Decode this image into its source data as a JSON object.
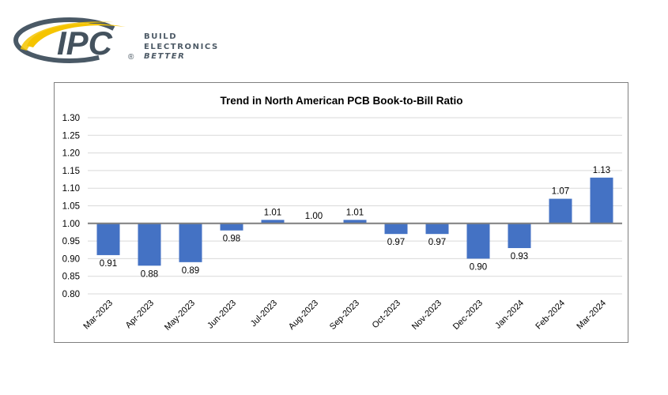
{
  "logo": {
    "brand": "IPC",
    "registered": "®",
    "tagline": [
      "BUILD",
      "ELECTRONICS",
      "BETTER"
    ],
    "colors": {
      "swoosh": "#f5c400",
      "ring": "#4a5966",
      "text": "#44525e"
    }
  },
  "chart_data": {
    "type": "bar",
    "title": "Trend in North American PCB Book-to-Bill Ratio",
    "categories": [
      "Mar-2023",
      "Apr-2023",
      "May-2023",
      "Jun-2023",
      "Jul-2023",
      "Aug-2023",
      "Sep-2023",
      "Oct-2023",
      "Nov-2023",
      "Dec-2023",
      "Jan-2024",
      "Feb-2024",
      "Mar-2024"
    ],
    "values": [
      0.91,
      0.88,
      0.89,
      0.98,
      1.01,
      1.0,
      1.01,
      0.97,
      0.97,
      0.9,
      0.93,
      1.07,
      1.13
    ],
    "labels": [
      "0.91",
      "0.88",
      "0.89",
      "0.98",
      "1.01",
      "1.00",
      "1.01",
      "0.97",
      "0.97",
      "0.90",
      "0.93",
      "1.07",
      "1.13"
    ],
    "baseline": 1.0,
    "ylim": [
      0.8,
      1.3
    ],
    "yticks": [
      "0.80",
      "0.85",
      "0.90",
      "0.95",
      "1.00",
      "1.05",
      "1.10",
      "1.15",
      "1.20",
      "1.25",
      "1.30"
    ],
    "grid": true,
    "bar_color": "#4472c4",
    "xlabel": "",
    "ylabel": ""
  }
}
